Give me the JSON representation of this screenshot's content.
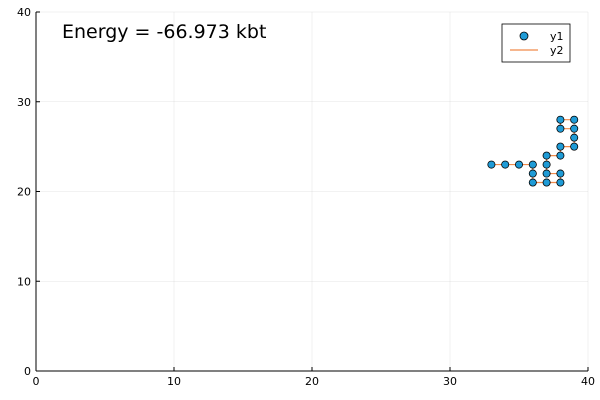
{
  "chart_data": {
    "type": "scatter",
    "xlim": [
      0,
      40
    ],
    "ylim": [
      0,
      40
    ],
    "x_ticks": [
      0,
      10,
      20,
      30,
      40
    ],
    "y_ticks": [
      0,
      10,
      20,
      30,
      40
    ],
    "grid": true,
    "annotation": "Energy = -66.973 kbt",
    "legend_position": "top-right",
    "series": [
      {
        "name": "y1",
        "kind": "scatter",
        "color": "#1f9bd6",
        "points": [
          [
            33,
            23
          ],
          [
            34,
            23
          ],
          [
            35,
            23
          ],
          [
            36,
            23
          ],
          [
            36,
            22
          ],
          [
            36,
            21
          ],
          [
            37,
            21
          ],
          [
            38,
            21
          ],
          [
            38,
            22
          ],
          [
            37,
            22
          ],
          [
            37,
            23
          ],
          [
            37,
            24
          ],
          [
            38,
            24
          ],
          [
            38,
            25
          ],
          [
            39,
            25
          ],
          [
            39,
            26
          ],
          [
            39,
            27
          ],
          [
            38,
            27
          ],
          [
            38,
            28
          ],
          [
            39,
            28
          ]
        ]
      },
      {
        "name": "y2",
        "kind": "line",
        "color": "#f08a4b",
        "points": [
          [
            33,
            23
          ],
          [
            34,
            23
          ],
          [
            35,
            23
          ],
          [
            36,
            23
          ],
          [
            36,
            22
          ],
          [
            36,
            21
          ],
          [
            37,
            21
          ],
          [
            38,
            21
          ],
          [
            38,
            22
          ],
          [
            37,
            22
          ],
          [
            37,
            23
          ],
          [
            37,
            24
          ],
          [
            38,
            24
          ],
          [
            38,
            25
          ],
          [
            39,
            25
          ],
          [
            39,
            26
          ],
          [
            39,
            27
          ],
          [
            38,
            27
          ],
          [
            38,
            28
          ],
          [
            39,
            28
          ]
        ]
      }
    ]
  }
}
